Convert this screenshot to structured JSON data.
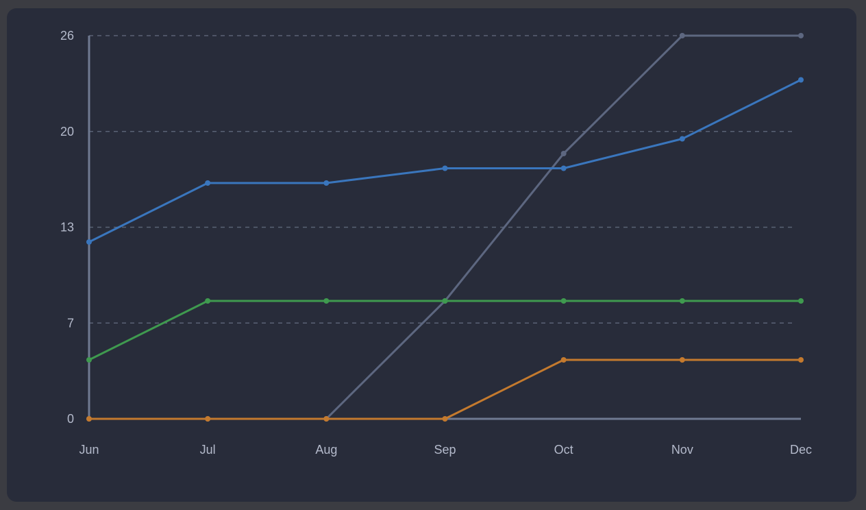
{
  "chart_data": {
    "type": "line",
    "title": "",
    "xlabel": "",
    "ylabel": "",
    "categories": [
      "Jun",
      "Jul",
      "Aug",
      "Sep",
      "Oct",
      "Nov",
      "Dec"
    ],
    "ylim": [
      0,
      26
    ],
    "y_ticks": [
      0,
      6.5,
      13,
      19.5,
      26
    ],
    "y_tick_labels": [
      "0",
      "7",
      "13",
      "20",
      "26"
    ],
    "grid": "horizontal dashed",
    "legend": "none",
    "series": [
      {
        "color": "#5d6780",
        "values": [
          0,
          0,
          0,
          8,
          18,
          26,
          26
        ]
      },
      {
        "color": "#3a76bd",
        "values": [
          12,
          16,
          16,
          17,
          17,
          19,
          23
        ]
      },
      {
        "color": "#3f9a4f",
        "values": [
          4,
          8,
          8,
          8,
          8,
          8,
          8
        ]
      },
      {
        "color": "#c47a2e",
        "values": [
          0,
          0,
          0,
          0,
          4,
          4,
          4
        ]
      }
    ]
  }
}
